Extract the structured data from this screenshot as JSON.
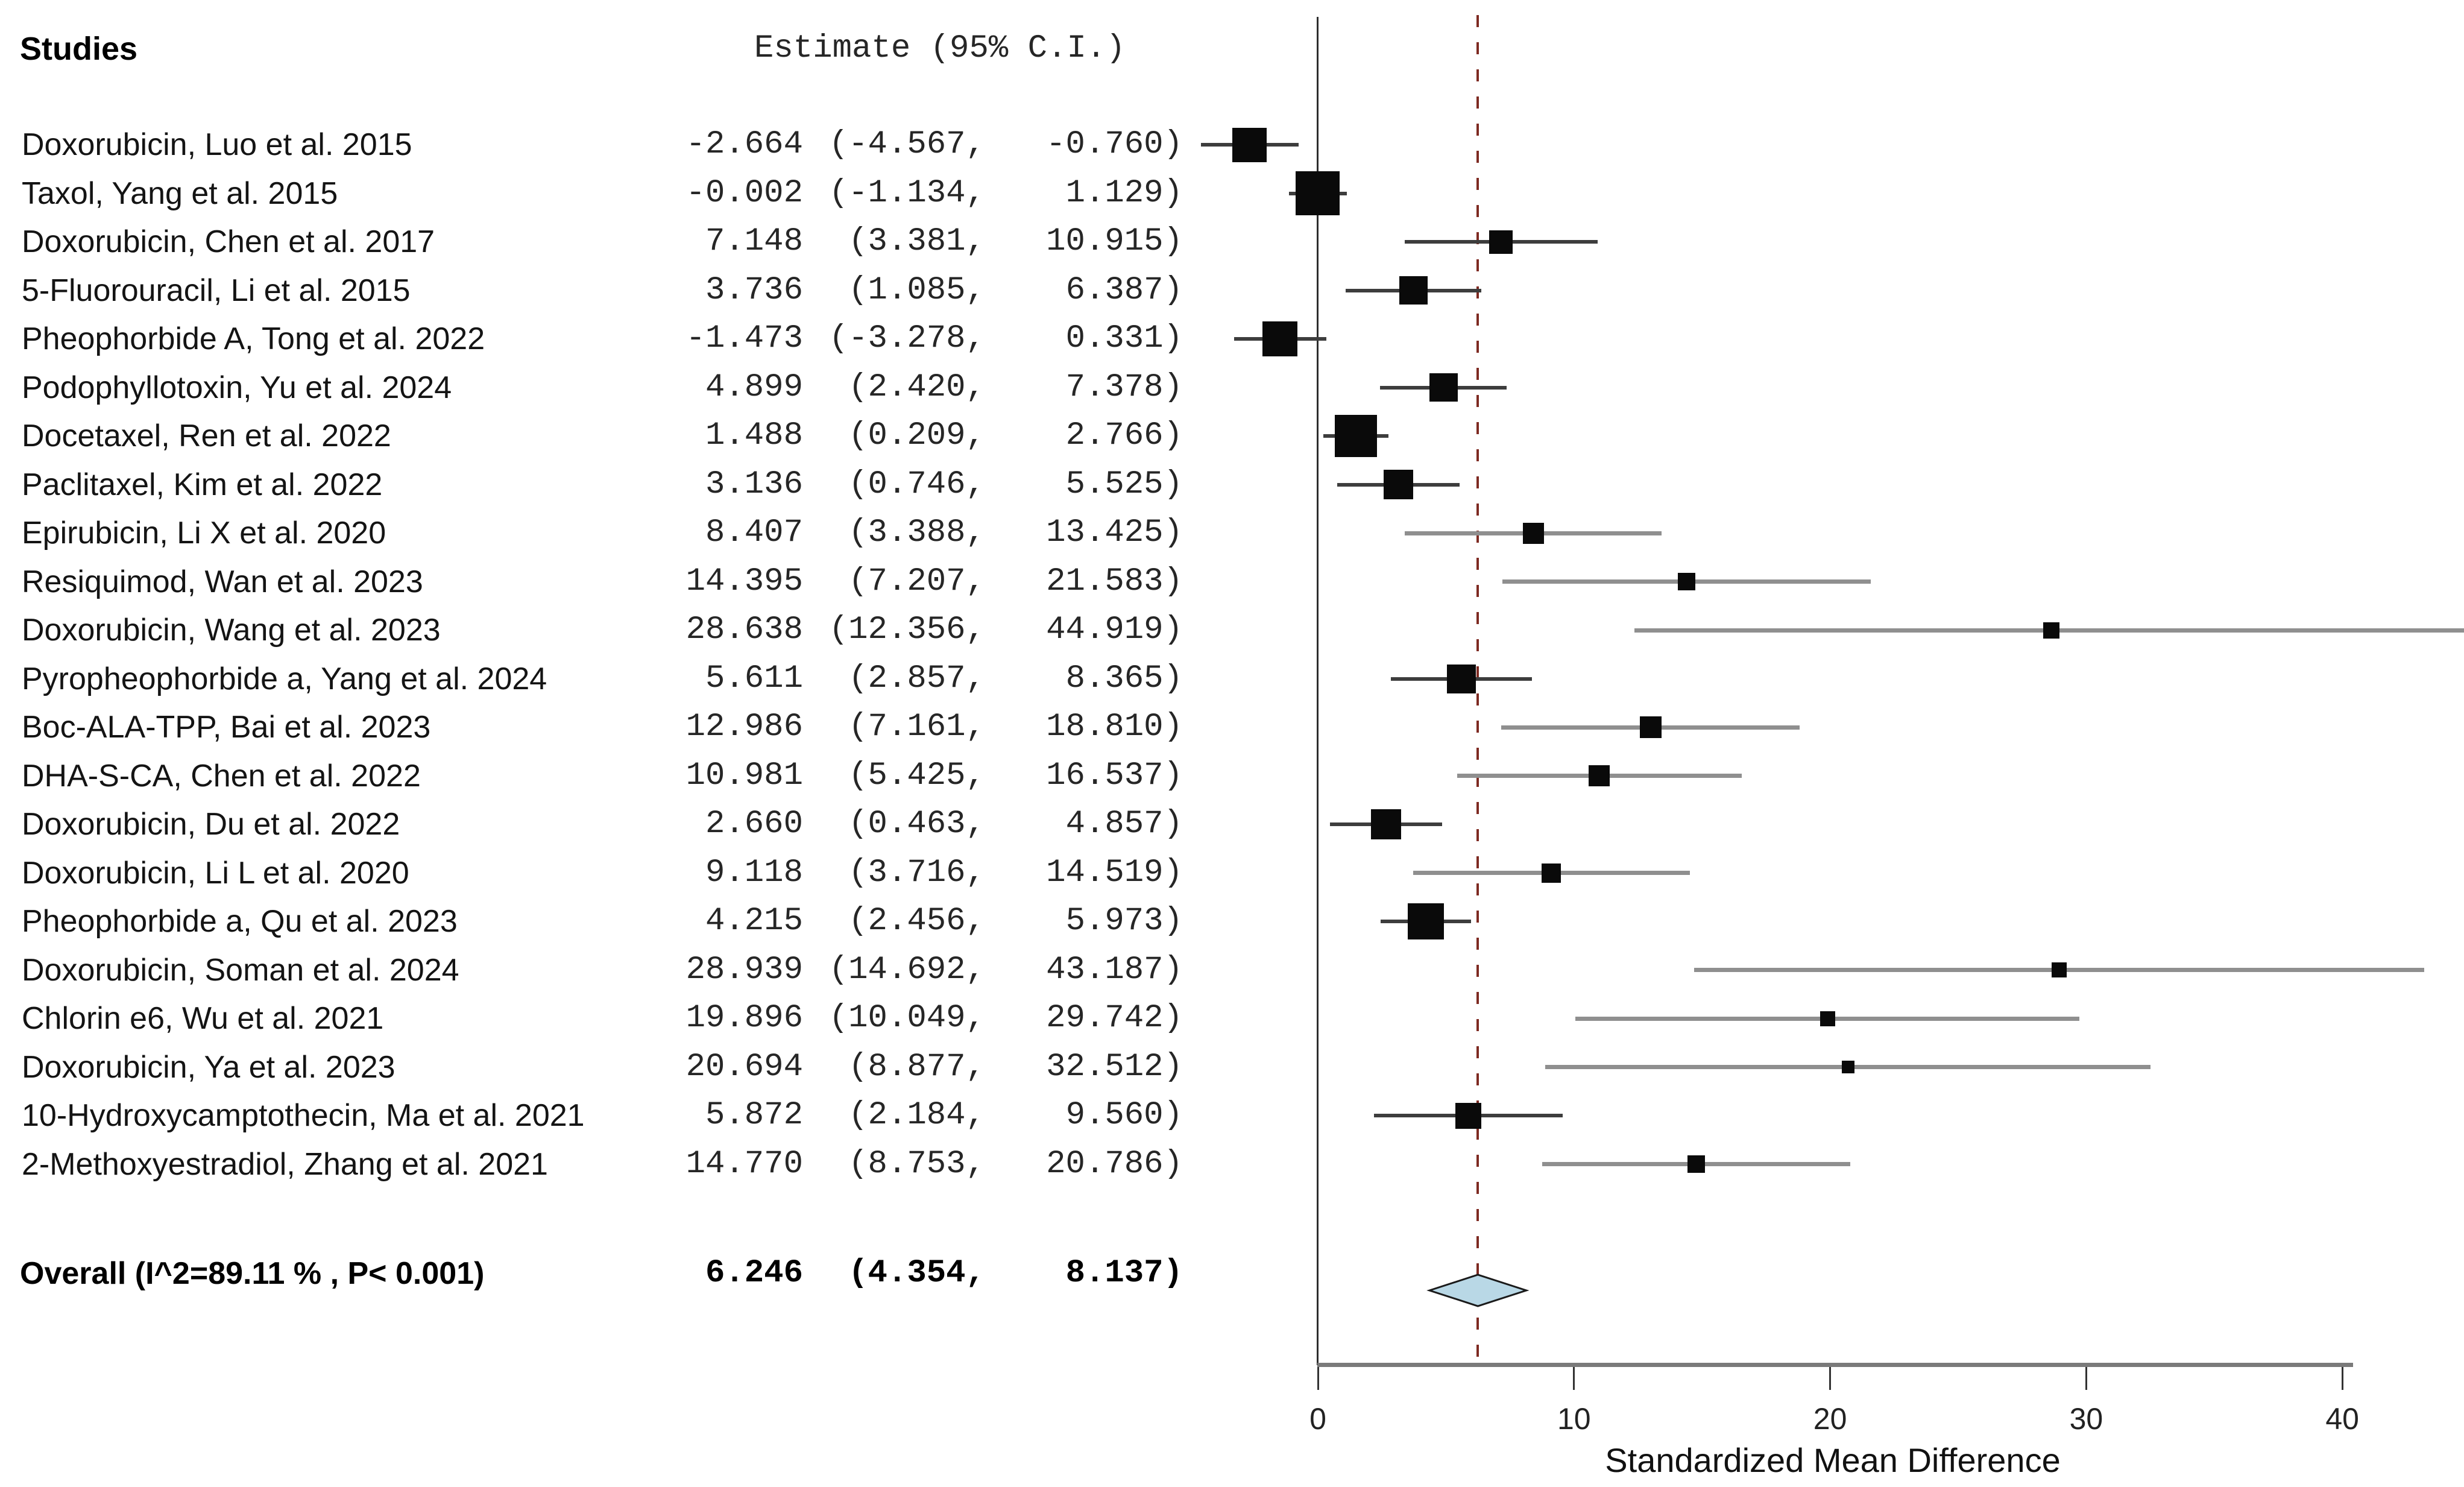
{
  "header": {
    "studies": "Studies",
    "estimate": "Estimate (95% C.I.)"
  },
  "axis": {
    "title": "Standardized Mean Difference",
    "ticks": [
      "0",
      "10",
      "20",
      "30",
      "40"
    ],
    "tick_values": [
      0,
      10,
      20,
      30,
      40
    ],
    "xmin": 0,
    "xmax": 40
  },
  "colors": {
    "whisker_dark": "#3d3d3d",
    "whisker_gray": "#8f8f8f",
    "marker": "#0a0a0a",
    "zero_line": "#2e2e2e",
    "ref_line": "#7e2a22",
    "axis_line": "#7a7a7a",
    "tick": "#333333",
    "diamond_fill": "#b9d8e6",
    "diamond_stroke": "#1a1a1a"
  },
  "chart_data": {
    "type": "forest",
    "xlabel": "Standardized Mean Difference",
    "xlim": [
      -4.8,
      45
    ],
    "ref_line_value": 6.246,
    "studies": [
      {
        "label": "Doxorubicin, Luo et al. 2015",
        "estimate": -2.664,
        "lower": -4.567,
        "upper": -0.76,
        "est_text": "-2.664",
        "lo_text": "(-4.567,",
        "hi_text": "-0.760)",
        "marker_px": 57,
        "whisker": "dark"
      },
      {
        "label": "Taxol, Yang et al. 2015",
        "estimate": -0.002,
        "lower": -1.134,
        "upper": 1.129,
        "est_text": "-0.002",
        "lo_text": "(-1.134,",
        "hi_text": "1.129)",
        "marker_px": 73,
        "whisker": "dark"
      },
      {
        "label": "Doxorubicin, Chen et al. 2017",
        "estimate": 7.148,
        "lower": 3.381,
        "upper": 10.915,
        "est_text": "7.148",
        "lo_text": "(3.381,",
        "hi_text": "10.915)",
        "marker_px": 39,
        "whisker": "dark"
      },
      {
        "label": "5-Fluorouracil, Li et al. 2015",
        "estimate": 3.736,
        "lower": 1.085,
        "upper": 6.387,
        "est_text": "3.736",
        "lo_text": "(1.085,",
        "hi_text": "6.387)",
        "marker_px": 47,
        "whisker": "dark"
      },
      {
        "label": "Pheophorbide A, Tong et al. 2022",
        "estimate": -1.473,
        "lower": -3.278,
        "upper": 0.331,
        "est_text": "-1.473",
        "lo_text": "(-3.278,",
        "hi_text": "0.331)",
        "marker_px": 58,
        "whisker": "dark"
      },
      {
        "label": "Podophyllotoxin, Yu et al. 2024",
        "estimate": 4.899,
        "lower": 2.42,
        "upper": 7.378,
        "est_text": "4.899",
        "lo_text": "(2.420,",
        "hi_text": "7.378)",
        "marker_px": 47,
        "whisker": "dark"
      },
      {
        "label": "Docetaxel, Ren et al. 2022",
        "estimate": 1.488,
        "lower": 0.209,
        "upper": 2.766,
        "est_text": "1.488",
        "lo_text": "(0.209,",
        "hi_text": "2.766)",
        "marker_px": 70,
        "whisker": "dark"
      },
      {
        "label": "Paclitaxel, Kim et al. 2022",
        "estimate": 3.136,
        "lower": 0.746,
        "upper": 5.525,
        "est_text": "3.136",
        "lo_text": "(0.746,",
        "hi_text": "5.525)",
        "marker_px": 49,
        "whisker": "dark"
      },
      {
        "label": "Epirubicin, Li X et al. 2020",
        "estimate": 8.407,
        "lower": 3.388,
        "upper": 13.425,
        "est_text": "8.407",
        "lo_text": "(3.388,",
        "hi_text": "13.425)",
        "marker_px": 35,
        "whisker": "gray"
      },
      {
        "label": "Resiquimod, Wan et al. 2023",
        "estimate": 14.395,
        "lower": 7.207,
        "upper": 21.583,
        "est_text": "14.395",
        "lo_text": "(7.207,",
        "hi_text": "21.583)",
        "marker_px": 29,
        "whisker": "gray"
      },
      {
        "label": "Doxorubicin, Wang et al. 2023",
        "estimate": 28.638,
        "lower": 12.356,
        "upper": 44.919,
        "est_text": "28.638",
        "lo_text": "(12.356,",
        "hi_text": "44.919)",
        "marker_px": 27,
        "whisker": "gray"
      },
      {
        "label": "Pyropheophorbide a, Yang et al. 2024",
        "estimate": 5.611,
        "lower": 2.857,
        "upper": 8.365,
        "est_text": "5.611",
        "lo_text": "(2.857,",
        "hi_text": "8.365)",
        "marker_px": 48,
        "whisker": "dark"
      },
      {
        "label": "Boc-ALA-TPP, Bai et al. 2023",
        "estimate": 12.986,
        "lower": 7.161,
        "upper": 18.81,
        "est_text": "12.986",
        "lo_text": "(7.161,",
        "hi_text": "18.810)",
        "marker_px": 36,
        "whisker": "gray"
      },
      {
        "label": "DHA-S-CA, Chen et al. 2022",
        "estimate": 10.981,
        "lower": 5.425,
        "upper": 16.537,
        "est_text": "10.981",
        "lo_text": "(5.425,",
        "hi_text": "16.537)",
        "marker_px": 35,
        "whisker": "gray"
      },
      {
        "label": "Doxorubicin, Du et al. 2022",
        "estimate": 2.66,
        "lower": 0.463,
        "upper": 4.857,
        "est_text": "2.660",
        "lo_text": "(0.463,",
        "hi_text": "4.857)",
        "marker_px": 50,
        "whisker": "dark"
      },
      {
        "label": "Doxorubicin, Li L et al. 2020",
        "estimate": 9.118,
        "lower": 3.716,
        "upper": 14.519,
        "est_text": "9.118",
        "lo_text": "(3.716,",
        "hi_text": "14.519)",
        "marker_px": 32,
        "whisker": "gray"
      },
      {
        "label": "Pheophorbide a, Qu et al. 2023",
        "estimate": 4.215,
        "lower": 2.456,
        "upper": 5.973,
        "est_text": "4.215",
        "lo_text": "(2.456,",
        "hi_text": "5.973)",
        "marker_px": 60,
        "whisker": "dark"
      },
      {
        "label": "Doxorubicin, Soman et al. 2024",
        "estimate": 28.939,
        "lower": 14.692,
        "upper": 43.187,
        "est_text": "28.939",
        "lo_text": "(14.692,",
        "hi_text": "43.187)",
        "marker_px": 25,
        "whisker": "gray"
      },
      {
        "label": "Chlorin e6, Wu et al. 2021",
        "estimate": 19.896,
        "lower": 10.049,
        "upper": 29.742,
        "est_text": "19.896",
        "lo_text": "(10.049,",
        "hi_text": "29.742)",
        "marker_px": 25,
        "whisker": "gray"
      },
      {
        "label": "Doxorubicin, Ya et al. 2023",
        "estimate": 20.694,
        "lower": 8.877,
        "upper": 32.512,
        "est_text": "20.694",
        "lo_text": "(8.877,",
        "hi_text": "32.512)",
        "marker_px": 21,
        "whisker": "gray"
      },
      {
        "label": "10-Hydroxycamptothecin, Ma et al. 2021",
        "estimate": 5.872,
        "lower": 2.184,
        "upper": 9.56,
        "est_text": "5.872",
        "lo_text": "(2.184,",
        "hi_text": "9.560)",
        "marker_px": 43,
        "whisker": "dark"
      },
      {
        "label": "2-Methoxyestradiol, Zhang et al. 2021",
        "estimate": 14.77,
        "lower": 8.753,
        "upper": 20.786,
        "est_text": "14.770",
        "lo_text": "(8.753,",
        "hi_text": "20.786)",
        "marker_px": 29,
        "whisker": "gray"
      }
    ],
    "overall": {
      "label": "Overall (I^2=89.11 % , P< 0.001)",
      "estimate": 6.246,
      "lower": 4.354,
      "upper": 8.137,
      "est_text": "6.246",
      "lo_text": "(4.354,",
      "hi_text": "8.137)"
    }
  }
}
